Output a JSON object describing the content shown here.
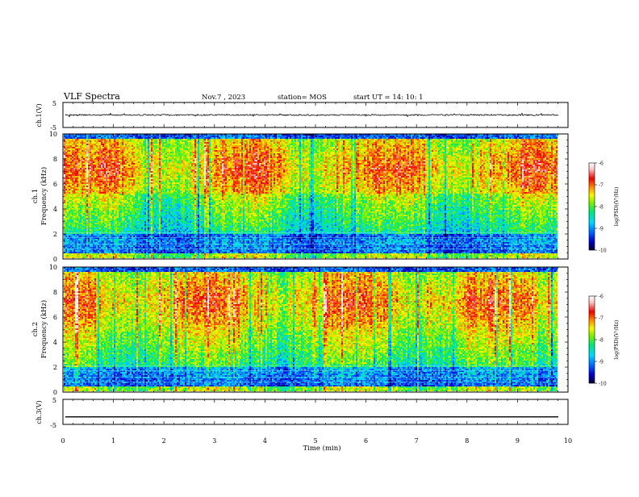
{
  "header": {
    "title": "VLF Spectra",
    "date": "Nov.7  , 2023",
    "station": "station= MOS",
    "start_ut": "start  UT =   14: 10: 1"
  },
  "chart_data": [
    {
      "id": "ch1-voltage",
      "type": "line",
      "ylabel": "ch.1(V)",
      "ylim": [
        -5,
        5
      ],
      "y_ticks": [
        "5",
        "-5"
      ],
      "baseline_level": 0.0,
      "xlim": [
        0,
        10
      ]
    },
    {
      "id": "ch1-spectrogram",
      "type": "heatmap",
      "ylabel": "ch.1\nFrequency (kHz)",
      "ylim": [
        0,
        10
      ],
      "y_ticks": [
        "0",
        "2",
        "4",
        "6",
        "8",
        "10"
      ],
      "xlim": [
        0,
        10
      ],
      "data_end_min": 9.8,
      "colorbar": {
        "label": "log(PSD)(V²/Hz)",
        "range": [
          -10,
          -6
        ],
        "ticks": [
          "-6",
          "-7",
          "-8",
          "-9",
          "-10"
        ]
      }
    },
    {
      "id": "ch2-spectrogram",
      "type": "heatmap",
      "ylabel": "ch.2\nFrequency (kHz)",
      "ylim": [
        0,
        10
      ],
      "y_ticks": [
        "0",
        "2",
        "4",
        "6",
        "8",
        "10"
      ],
      "xlim": [
        0,
        10
      ],
      "data_end_min": 9.8,
      "colorbar": {
        "label": "log(PSD)(V²/Hz)",
        "range": [
          -10,
          -6
        ],
        "ticks": [
          "-6",
          "-7",
          "-8",
          "-9",
          "-10"
        ]
      }
    },
    {
      "id": "ch3-voltage",
      "type": "line",
      "ylabel": "ch.3(V)",
      "ylim": [
        -5,
        5
      ],
      "y_ticks": [
        "5",
        "-5"
      ],
      "baseline_level": -2.0,
      "xlim": [
        0,
        10
      ]
    }
  ],
  "x_axis": {
    "label": "Time  (min)",
    "ticks": [
      "0",
      "1",
      "2",
      "3",
      "4",
      "5",
      "6",
      "7",
      "8",
      "9",
      "10"
    ]
  },
  "colors": {
    "axis": "#000000",
    "background": "#ffffff",
    "colormap": [
      "#000030",
      "#0000c8",
      "#0060ff",
      "#00d8ff",
      "#00e878",
      "#78f000",
      "#f8f800",
      "#ff8c00",
      "#f00000",
      "#ffc8c8",
      "#ffffff"
    ]
  }
}
